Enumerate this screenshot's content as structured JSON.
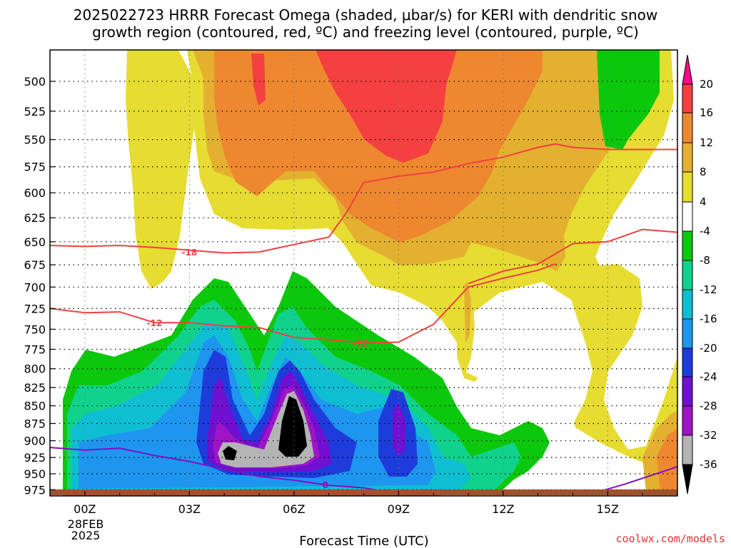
{
  "title_line1": "2025022723 HRRR Forecast Omega (shaded, μbar/s) for KERI with dendritic snow",
  "title_line2": "growth region (contoured, red, ºC) and freezing level (contoured, purple, ºC)",
  "credit": "coolwx.com/models",
  "chart_data": {
    "type": "heatmap",
    "title": "2025022723 HRRR Forecast Omega (shaded, μbar/s) for KERI with dendritic snow growth region (contoured, red, ºC) and freezing level (contoured, purple, ºC)",
    "xlabel": "Forecast Time (UTC)",
    "ylabel": "",
    "x_ticks": [
      "00Z",
      "03Z",
      "06Z",
      "09Z",
      "12Z",
      "15Z"
    ],
    "x_tick_hours": [
      0,
      3,
      6,
      9,
      12,
      15
    ],
    "x_date_label": [
      "28FEB",
      "2025"
    ],
    "xlim_hours": [
      -1,
      17
    ],
    "y_ticks": [
      500,
      525,
      550,
      575,
      600,
      625,
      650,
      675,
      700,
      725,
      750,
      775,
      800,
      825,
      850,
      875,
      900,
      925,
      950,
      975
    ],
    "ylim_mb": [
      475,
      985
    ],
    "y_scale": "log-pressure",
    "grid": true,
    "colorbar": {
      "ticks": [
        "20",
        "16",
        "12",
        "8",
        "4",
        "-4",
        "-8",
        "-12",
        "-16",
        "-20",
        "-24",
        "-28",
        "-32",
        "-36"
      ],
      "colors": [
        "#ff0a8c",
        "#f44040",
        "#ee8830",
        "#e4b030",
        "#e6dc32",
        "#ffffff",
        "#0cc80c",
        "#10d28c",
        "#10bed2",
        "#1e96f0",
        "#1e3cdc",
        "#7010d0",
        "#a014c8",
        "#b4b4b4",
        "#000000"
      ]
    },
    "contours": {
      "dgz_red": [
        {
          "label": "-18",
          "x": [
            -1,
            0,
            1,
            2,
            3,
            4,
            5,
            6,
            7,
            7.5,
            8,
            9,
            10,
            11,
            12,
            13,
            13.5,
            14,
            15,
            16,
            17
          ],
          "y": [
            654,
            655,
            654,
            656,
            659,
            662,
            661,
            653,
            645,
            620,
            590,
            584,
            580,
            572,
            566,
            557,
            554,
            557,
            559,
            559,
            559
          ]
        },
        {
          "label": "-18",
          "x": [
            11,
            12,
            13,
            14,
            15,
            16,
            17
          ],
          "y": [
            696,
            682,
            674,
            652,
            650,
            637,
            640
          ]
        },
        {
          "label": "-12",
          "x": [
            -1,
            0,
            1,
            2,
            3,
            4,
            5,
            6,
            7,
            8,
            9,
            10,
            11
          ],
          "y": [
            725,
            730,
            729,
            742,
            742,
            746,
            748,
            760,
            763,
            767,
            766,
            744,
            700
          ]
        },
        {
          "label": "-12",
          "x": [
            11,
            12,
            13,
            13.5
          ],
          "y": [
            700,
            690,
            681,
            674
          ]
        }
      ],
      "freezing_purple": [
        {
          "label": "0",
          "x": [
            -1,
            0,
            1,
            2,
            3,
            4,
            5,
            6,
            7,
            8,
            9
          ],
          "y": [
            910,
            914,
            911,
            922,
            931,
            943,
            954,
            960,
            968,
            972,
            982
          ]
        },
        {
          "label": "",
          "x": [
            14.5,
            15.5,
            16.5,
            17
          ],
          "y": [
            982,
            966,
            948,
            939
          ]
        }
      ]
    },
    "omega_regions_ubar_s": [
      {
        "value": 4,
        "note": "upper-left and center-right yellow regions"
      },
      {
        "value": 8,
        "note": "orange band 500-680 mb, 03Z-12Z"
      },
      {
        "value": 12,
        "note": "orange core 500-600 mb near 04-08Z"
      },
      {
        "value": 16,
        "note": "red core 500-585 mb near 07-09Z"
      },
      {
        "value": -8,
        "note": "green region 700-985 mb, 00Z-12Z"
      },
      {
        "value": -20,
        "note": "blue core 800-960 mb, 03Z-09Z"
      },
      {
        "value": -36,
        "note": "black core 850-920 mb near 06Z"
      }
    ],
    "ground": {
      "color": "#a0522d"
    }
  }
}
